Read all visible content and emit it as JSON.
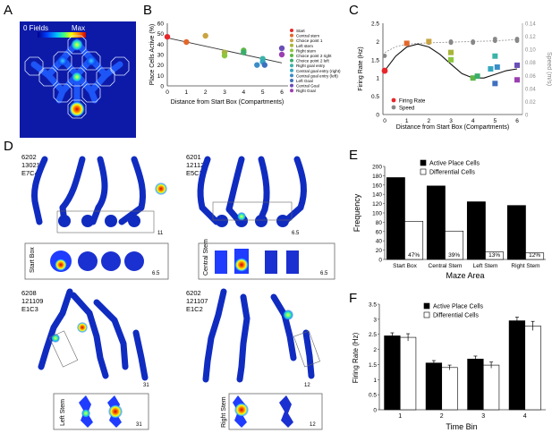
{
  "panel_letters": [
    "A",
    "B",
    "C",
    "D",
    "E",
    "F"
  ],
  "panel_a": {
    "scale_min_label": "0 Fields",
    "scale_max_label": "Max",
    "colormap": [
      "#00008f",
      "#0040ff",
      "#00c0ff",
      "#40ff80",
      "#ffff00",
      "#ff8000",
      "#d00000"
    ],
    "background_color": "#0d1aa8"
  },
  "panel_d": {
    "examples": [
      {
        "id1": "6202",
        "id2": "130211",
        "id3": "E7C4",
        "inset_label": "Start Box",
        "small_number": "11",
        "inset_number": "6.5"
      },
      {
        "id1": "6201",
        "id2": "121121",
        "id3": "E5C2",
        "inset_label": "Central Stem",
        "small_number": "6.5",
        "inset_number": "6.5"
      },
      {
        "id1": "6208",
        "id2": "121109",
        "id3": "E1C3",
        "inset_label": "Left Stem",
        "small_number": "31",
        "inset_number": "31"
      },
      {
        "id1": "6202",
        "id2": "121107",
        "id3": "E1C2",
        "inset_label": "Right Stem",
        "small_number": "12",
        "inset_number": "12"
      }
    ]
  },
  "chart_data": [
    {
      "panel": "B",
      "type": "scatter",
      "xlabel": "Distance from Start Box (Compartments)",
      "ylabel": "Place Cells Active (%)",
      "xlim": [
        0,
        6
      ],
      "ylim": [
        0,
        60
      ],
      "xticks": [
        "0",
        "1",
        "2",
        "3",
        "4",
        "5",
        "6"
      ],
      "yticks": [
        "0",
        "10",
        "20",
        "30",
        "40",
        "50",
        "60"
      ],
      "legend": [
        {
          "label": "Start",
          "color": "#e8262a"
        },
        {
          "label": "Central stem",
          "color": "#e2672b"
        },
        {
          "label": "Choice point 1",
          "color": "#c9a441"
        },
        {
          "label": "Left stem",
          "color": "#a9b43a"
        },
        {
          "label": "Right stem",
          "color": "#8cc63e"
        },
        {
          "label": "Choice point 2 right",
          "color": "#5fb846"
        },
        {
          "label": "Choice point 2 left",
          "color": "#3aad6c"
        },
        {
          "label": "Right goal entry",
          "color": "#3bb3a8"
        },
        {
          "label": "Central goal entry (right)",
          "color": "#35a6bf"
        },
        {
          "label": "Central goal entry (left)",
          "color": "#3a8ec7"
        },
        {
          "label": "Left Goal",
          "color": "#3f6fbf"
        },
        {
          "label": "Central Goal",
          "color": "#6a4fb6"
        },
        {
          "label": "Right Goal",
          "color": "#9b3fb0"
        }
      ],
      "points": [
        {
          "x": 0,
          "y": 47,
          "color": "#e8262a"
        },
        {
          "x": 1,
          "y": 42,
          "color": "#e2672b"
        },
        {
          "x": 2,
          "y": 48,
          "color": "#c9a441"
        },
        {
          "x": 3,
          "y": 32,
          "color": "#a9b43a"
        },
        {
          "x": 3,
          "y": 29,
          "color": "#8cc63e"
        },
        {
          "x": 4,
          "y": 34,
          "color": "#5fb846"
        },
        {
          "x": 4,
          "y": 32,
          "color": "#3aad6c"
        },
        {
          "x": 5,
          "y": 26,
          "color": "#3bb3a8"
        },
        {
          "x": 5,
          "y": 23,
          "color": "#35a6bf"
        },
        {
          "x": 4.7,
          "y": 20,
          "color": "#3a8ec7"
        },
        {
          "x": 5.1,
          "y": 20,
          "color": "#3f6fbf"
        },
        {
          "x": 6,
          "y": 36,
          "color": "#6a4fb6"
        },
        {
          "x": 6,
          "y": 30,
          "color": "#9b3fb0"
        }
      ],
      "trendline": [
        [
          0,
          46
        ],
        [
          6,
          22
        ]
      ]
    },
    {
      "panel": "C",
      "type": "line",
      "xlabel": "Distance from Start Box (Compartments)",
      "ylabel": "Firing Rate (Hz)",
      "ylabel_right": "Speed (m/s)",
      "xlim": [
        0,
        6
      ],
      "ylim": [
        0,
        2.5
      ],
      "ylim_right": [
        0,
        0.14
      ],
      "xticks": [
        "0",
        "1",
        "2",
        "3",
        "4",
        "5",
        "6"
      ],
      "yticks": [
        "0",
        "0.5",
        "1",
        "1.5",
        "2",
        "2.5"
      ],
      "yticks_right": [
        "0",
        "0.02",
        "0.04",
        "0.06",
        "0.08",
        "0.10",
        "0.12",
        "0.14"
      ],
      "legend": [
        {
          "label": "Firing Rate",
          "color": "#e8262a"
        },
        {
          "label": "Speed",
          "color": "#888888"
        }
      ],
      "firing_rate_points": [
        {
          "x": 0,
          "y": 1.2,
          "color": "#e8262a"
        },
        {
          "x": 1,
          "y": 1.95,
          "color": "#e2672b"
        },
        {
          "x": 2,
          "y": 2.0,
          "color": "#c9a441"
        },
        {
          "x": 3,
          "y": 1.7,
          "color": "#a9b43a"
        },
        {
          "x": 3,
          "y": 1.5,
          "color": "#8cc63e"
        },
        {
          "x": 4,
          "y": 1.0,
          "color": "#5fb846"
        },
        {
          "x": 4.2,
          "y": 1.05,
          "color": "#3aad6c"
        },
        {
          "x": 5,
          "y": 1.6,
          "color": "#3bb3a8"
        },
        {
          "x": 4.8,
          "y": 1.25,
          "color": "#35a6bf"
        },
        {
          "x": 5.1,
          "y": 1.3,
          "color": "#3a8ec7"
        },
        {
          "x": 5,
          "y": 0.85,
          "color": "#3f6fbf"
        },
        {
          "x": 6,
          "y": 1.35,
          "color": "#6a4fb6"
        },
        {
          "x": 6,
          "y": 0.95,
          "color": "#9b3fb0"
        }
      ],
      "firing_rate_fit": [
        [
          0,
          1.2
        ],
        [
          0.5,
          1.6
        ],
        [
          1,
          1.85
        ],
        [
          1.5,
          1.93
        ],
        [
          2,
          1.85
        ],
        [
          2.5,
          1.65
        ],
        [
          3,
          1.38
        ],
        [
          3.5,
          1.12
        ],
        [
          4,
          1.0
        ],
        [
          4.5,
          1.0
        ],
        [
          5,
          1.1
        ],
        [
          5.5,
          1.2
        ],
        [
          6,
          1.25
        ]
      ],
      "speed_points": [
        {
          "x": 0,
          "y": 0.09
        },
        {
          "x": 1,
          "y": 0.11
        },
        {
          "x": 2,
          "y": 0.11
        },
        {
          "x": 3,
          "y": 0.11
        },
        {
          "x": 3,
          "y": 0.112
        },
        {
          "x": 4,
          "y": 0.11
        },
        {
          "x": 4,
          "y": 0.112
        },
        {
          "x": 5,
          "y": 0.113
        },
        {
          "x": 5,
          "y": 0.116
        },
        {
          "x": 6,
          "y": 0.113
        },
        {
          "x": 6,
          "y": 0.116
        }
      ],
      "speed_fit": [
        [
          0,
          0.095
        ],
        [
          0.5,
          0.104
        ],
        [
          1,
          0.108
        ],
        [
          2,
          0.11
        ],
        [
          3,
          0.111
        ],
        [
          4,
          0.112
        ],
        [
          5,
          0.113
        ],
        [
          6,
          0.115
        ]
      ]
    },
    {
      "panel": "E",
      "type": "bar",
      "xlabel": "Maze Area",
      "ylabel": "Frequency",
      "ylim": [
        0,
        200
      ],
      "yticks": [
        "0",
        "20",
        "40",
        "60",
        "80",
        "100",
        "120",
        "140",
        "160",
        "180",
        "200"
      ],
      "categories": [
        "Start Box",
        "Central Stem",
        "Left Stem",
        "Right Stem"
      ],
      "series": [
        {
          "name": "Active Place Cells",
          "color": "#000000",
          "values": [
            176,
            158,
            124,
            116
          ]
        },
        {
          "name": "Differential Cells",
          "color": "#ffffff",
          "values": [
            82,
            61,
            16,
            14
          ]
        }
      ],
      "bar_labels": [
        "47%",
        "39%",
        "13%",
        "12%"
      ]
    },
    {
      "panel": "F",
      "type": "bar",
      "xlabel": "Time Bin",
      "ylabel": "Firing Rate (Hz)",
      "ylim": [
        0,
        3.5
      ],
      "yticks": [
        "0",
        "0.5",
        "1",
        "1.5",
        "2",
        "2.5",
        "3",
        "3.5"
      ],
      "categories": [
        "1",
        "2",
        "3",
        "4"
      ],
      "series": [
        {
          "name": "Active Place Cells",
          "color": "#000000",
          "values": [
            2.45,
            1.55,
            1.68,
            2.95
          ],
          "errors": [
            0.1,
            0.08,
            0.1,
            0.12
          ]
        },
        {
          "name": "Differential Cells",
          "color": "#ffffff",
          "values": [
            2.4,
            1.4,
            1.48,
            2.78
          ],
          "errors": [
            0.12,
            0.08,
            0.1,
            0.15
          ]
        }
      ]
    }
  ]
}
